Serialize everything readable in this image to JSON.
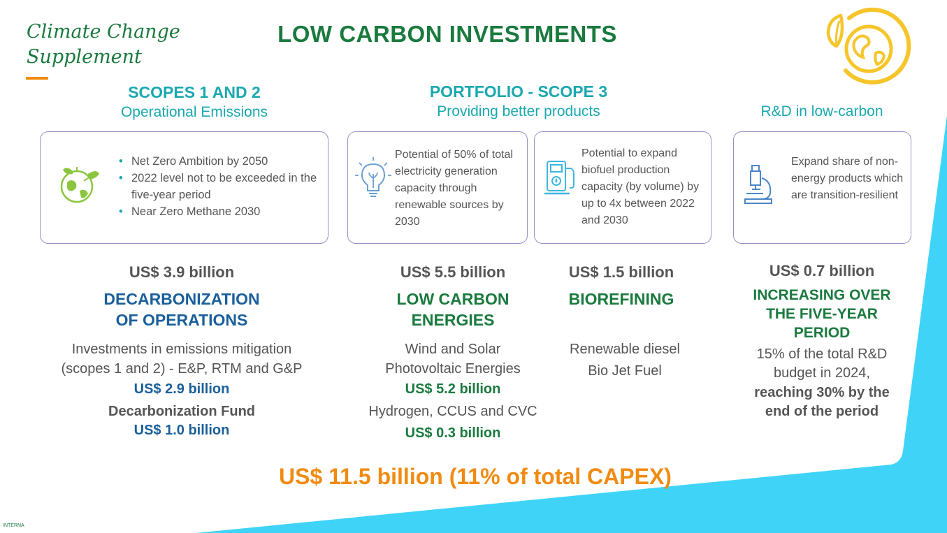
{
  "header": {
    "supplement_line1": "Climate Change",
    "supplement_line2": "Supplement",
    "title": "LOW CARBON INVESTMENTS"
  },
  "sections": {
    "scopes12": {
      "heading": "SCOPES 1 AND 2",
      "subheading": "Operational Emissions"
    },
    "scope3": {
      "heading": "PORTFOLIO - SCOPE 3",
      "subheading": "Providing better products"
    },
    "rnd": {
      "subheading": "R&D in low-carbon"
    }
  },
  "cards": {
    "operations": {
      "icon": "globe-leaf-icon",
      "bullets": [
        "Net Zero Ambition by 2050",
        "2022 level not to be exceeded in the five-year period",
        "Near Zero Methane 2030"
      ]
    },
    "renewables": {
      "icon": "lightbulb-icon",
      "text": "Potential of 50% of total electricity generation capacity through renewable sources by 2030"
    },
    "biofuel": {
      "icon": "fuel-pump-icon",
      "text": "Potential to expand biofuel production capacity (by volume) by up to 4x between 2022 and 2030"
    },
    "research": {
      "icon": "microscope-icon",
      "text": "Expand share of non-energy products which are transition-resilient"
    }
  },
  "columns": {
    "decarbonization": {
      "amount": "US$ 3.9 billion",
      "category_line1": "DECARBONIZATION",
      "category_line2": "OF OPERATIONS",
      "desc_line1": "Investments in emissions mitigation",
      "desc_line2": "(scopes 1 and 2) - E&P, RTM and G&P",
      "value1": "US$ 2.9 billion",
      "fund_label": "Decarbonization Fund",
      "value2": "US$ 1.0 billion"
    },
    "low_carbon": {
      "amount": "US$ 5.5 billion",
      "category_line1": "LOW CARBON",
      "category_line2": "ENERGIES",
      "desc_line1": "Wind and Solar",
      "desc_line2": "Photovoltaic Energies",
      "value1": "US$ 5.2 billion",
      "desc2": "Hydrogen, CCUS and CVC",
      "value2": "US$ 0.3 billion"
    },
    "biorefining": {
      "amount": "US$ 1.5 billion",
      "category": "BIOREFINING",
      "item1": "Renewable diesel",
      "item2": "Bio Jet Fuel"
    },
    "rnd": {
      "amount": "US$ 0.7 billion",
      "category_line1": "INCREASING OVER",
      "category_line2": "THE FIVE-YEAR",
      "category_line3": "PERIOD",
      "desc_line1": "15% of the total R&D",
      "desc_line2": "budget in 2024,",
      "bold_line1": "reaching 30% by the",
      "bold_line2": "end of the period"
    }
  },
  "total": "US$ 11.5 billion (11% of total CAPEX)",
  "footer": {
    "classification": "INTERNA"
  },
  "colors": {
    "green": "#1a7a3e",
    "teal": "#1aa8b0",
    "blue": "#1a5f9a",
    "orange": "#f08b12",
    "cyan_shape": "#3fd4f7",
    "yellow_logo": "#f5c52a",
    "card_border": "#9a8fc4"
  },
  "logo": {
    "icon": "earth-leaf-logo-icon"
  }
}
